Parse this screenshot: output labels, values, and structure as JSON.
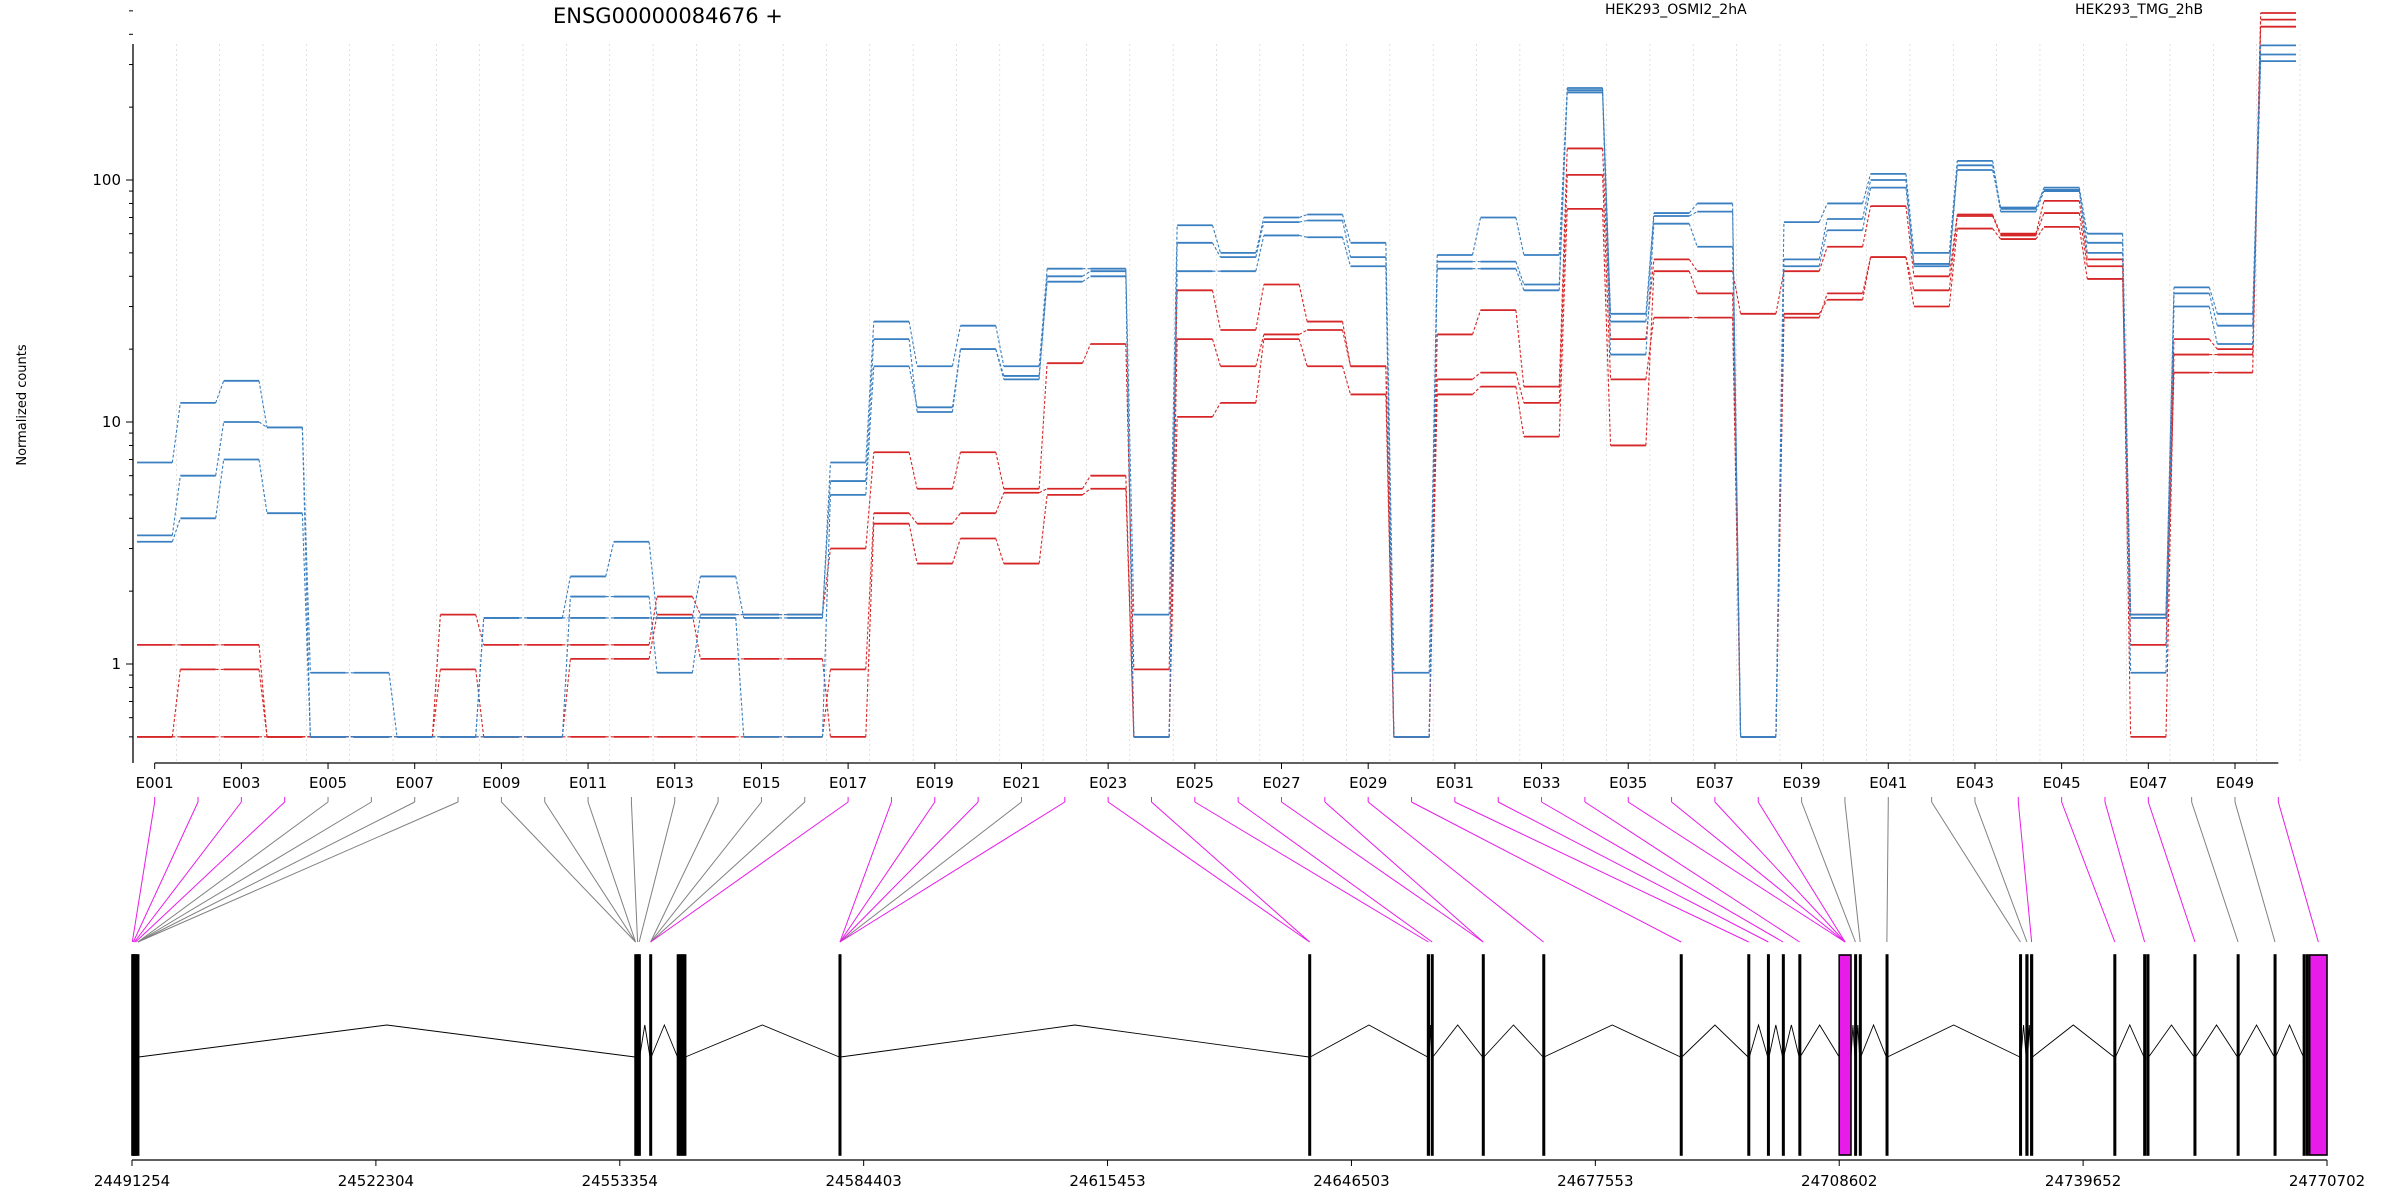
{
  "title": "ENSG00000084676 +",
  "ylabel": "Normalized counts",
  "legend": [
    {
      "name": "HEK293_OSMI2_2hA",
      "color": "#d62728"
    },
    {
      "name": "HEK293_TMG_2hB",
      "color": "#3a7fc0"
    }
  ],
  "chart_data": {
    "type": "line",
    "title": "ENSG00000084676 +",
    "ylabel": "Normalized counts",
    "yscale": "log",
    "ylim": [
      0.5,
      600
    ],
    "yticks": [
      1,
      10,
      100
    ],
    "ytick_labels": [
      "1",
      "10",
      "100"
    ],
    "xlabels_shown": [
      "E001",
      "E003",
      "E005",
      "E007",
      "E009",
      "E011",
      "E013",
      "E015",
      "E017",
      "E019",
      "E021",
      "E023",
      "E025",
      "E027",
      "E029",
      "E031",
      "E033",
      "E035",
      "E037",
      "E039",
      "E041",
      "E043",
      "E045",
      "E047",
      "E049"
    ],
    "categories": [
      "E001",
      "E002",
      "E003",
      "E004",
      "E005",
      "E006",
      "E007",
      "E008",
      "E009",
      "E010",
      "E011",
      "E012",
      "E013",
      "E014",
      "E015",
      "E016",
      "E017",
      "E018",
      "E019",
      "E020",
      "E021",
      "E022",
      "E023",
      "E024",
      "E025",
      "E026",
      "E027",
      "E028",
      "E029",
      "E030",
      "E031",
      "E032",
      "E033",
      "E034",
      "E035",
      "E036",
      "E037",
      "E038",
      "E039",
      "E040",
      "E041",
      "E042",
      "E043",
      "E044",
      "E045",
      "E046",
      "E047",
      "E048",
      "E049",
      "E050"
    ],
    "series": [
      {
        "name": "HEK293_OSMI2_2hA",
        "color": "#d62728",
        "values": [
          1.2,
          1.2,
          1.2,
          0.5,
          0.5,
          0.5,
          0.5,
          1.6,
          1.2,
          1.2,
          1.2,
          1.2,
          1.9,
          1.6,
          1.6,
          1.6,
          3.0,
          7.5,
          5.3,
          7.5,
          5.3,
          17.5,
          21.0,
          0.95,
          35.0,
          24.0,
          37.0,
          26.0,
          17.0,
          0.5,
          23.0,
          29.0,
          14.0,
          135.0,
          22.0,
          47.0,
          42.0,
          28.0,
          42.0,
          53.0,
          78.0,
          40.0,
          72.0,
          60.0,
          82.0,
          47.0,
          1.6,
          22.0,
          20.0,
          490.0
        ]
      },
      {
        "name": "HEK293_OSMI2_2hA",
        "color": "#d62728",
        "values": [
          0.5,
          0.95,
          0.95,
          0.5,
          0.5,
          0.5,
          0.5,
          0.95,
          0.5,
          0.5,
          0.5,
          0.5,
          0.5,
          0.5,
          0.5,
          0.5,
          0.95,
          4.2,
          3.8,
          4.2,
          5.1,
          5.3,
          6.0,
          0.5,
          22.0,
          17.0,
          23.0,
          24.0,
          17.0,
          0.5,
          15.0,
          16.0,
          12.0,
          105.0,
          15.0,
          27.0,
          27.0,
          0.5,
          27.0,
          34.0,
          48.0,
          30.0,
          63.0,
          57.0,
          64.0,
          39.0,
          1.2,
          16.0,
          16.0,
          430.0
        ]
      },
      {
        "name": "HEK293_OSMI2_2hA",
        "color": "#d62728",
        "values": [
          0.5,
          0.5,
          0.5,
          0.5,
          0.5,
          0.5,
          0.5,
          0.5,
          0.5,
          0.5,
          1.05,
          1.05,
          1.6,
          1.05,
          1.05,
          1.05,
          0.5,
          3.8,
          2.6,
          3.3,
          2.6,
          5.0,
          5.3,
          0.5,
          10.5,
          12.0,
          22.0,
          17.0,
          13.0,
          0.5,
          13.0,
          14.0,
          8.7,
          76.0,
          8.0,
          42.0,
          34.0,
          0.5,
          28.0,
          32.0,
          48.0,
          35.0,
          71.0,
          59.0,
          73.0,
          44.0,
          0.5,
          19.0,
          19.0,
          460.0
        ]
      },
      {
        "name": "HEK293_TMG_2hB",
        "color": "#3a7fc0",
        "values": [
          6.8,
          12.0,
          14.8,
          9.5,
          0.92,
          0.92,
          0.5,
          0.5,
          1.55,
          1.55,
          2.3,
          3.2,
          1.55,
          2.3,
          1.55,
          1.55,
          6.8,
          26.0,
          17.0,
          25.0,
          17.0,
          43.0,
          43.0,
          1.6,
          65.0,
          50.0,
          70.0,
          72.0,
          55.0,
          0.92,
          49.0,
          70.0,
          49.0,
          240.0,
          28.0,
          73.0,
          80.0,
          0.5,
          67.0,
          80.0,
          106.0,
          50.0,
          120.0,
          76.0,
          93.0,
          60.0,
          1.6,
          36.0,
          28.0,
          360.0
        ]
      },
      {
        "name": "HEK293_TMG_2hB",
        "color": "#3a7fc0",
        "values": [
          3.4,
          6.0,
          10.0,
          9.5,
          0.5,
          0.5,
          0.5,
          0.5,
          0.5,
          0.5,
          1.9,
          1.9,
          0.92,
          1.6,
          1.6,
          1.6,
          5.7,
          22.0,
          11.0,
          20.0,
          15.0,
          40.0,
          42.0,
          0.5,
          55.0,
          48.0,
          67.0,
          68.0,
          48.0,
          0.5,
          46.0,
          46.0,
          37.0,
          235.0,
          26.0,
          71.0,
          74.0,
          0.5,
          47.0,
          69.0,
          100.0,
          45.0,
          115.0,
          74.0,
          90.0,
          55.0,
          1.55,
          34.0,
          25.0,
          330.0
        ]
      },
      {
        "name": "HEK293_TMG_2hB",
        "color": "#3a7fc0",
        "values": [
          3.2,
          4.0,
          7.0,
          4.2,
          0.5,
          0.5,
          0.5,
          0.5,
          1.55,
          1.55,
          1.55,
          1.55,
          1.55,
          1.55,
          0.5,
          0.5,
          5.0,
          17.0,
          11.5,
          20.0,
          15.5,
          38.0,
          40.0,
          0.5,
          42.0,
          42.0,
          59.0,
          58.0,
          44.0,
          0.5,
          43.0,
          43.0,
          35.0,
          230.0,
          19.0,
          66.0,
          53.0,
          0.5,
          44.0,
          62.0,
          93.0,
          44.0,
          110.0,
          77.0,
          91.0,
          50.0,
          0.92,
          30.0,
          21.0,
          310.0
        ]
      }
    ]
  },
  "gene_model": {
    "coordinates": [
      "24491254",
      "24522304",
      "24553354",
      "24584403",
      "24615453",
      "24646503",
      "24677553",
      "24708602",
      "24739652",
      "24770702"
    ],
    "coord_min": 24491254,
    "coord_max": 24770702,
    "highlight_color": "#e81ce8",
    "line_color": "#808080",
    "exons": [
      [
        24491254,
        24491330
      ],
      [
        24491380,
        24491460
      ],
      [
        24491520,
        24491600
      ],
      [
        24491660,
        24491740
      ],
      [
        24491900,
        24492100
      ],
      [
        24555300,
        24555420
      ],
      [
        24555560,
        24555680
      ],
      [
        24555760,
        24555880
      ],
      [
        24557200,
        24557360
      ],
      [
        24560700,
        24560840
      ],
      [
        24561000,
        24561140
      ],
      [
        24561280,
        24561400
      ],
      [
        24561560,
        24561700
      ],
      [
        24581300,
        24581460
      ],
      [
        24641100,
        24641260
      ],
      [
        24656200,
        24656400
      ],
      [
        24656700,
        24656860
      ],
      [
        24663200,
        24663360
      ],
      [
        24670900,
        24671020
      ],
      [
        24688400,
        24688560
      ],
      [
        24697000,
        24697160
      ],
      [
        24699500,
        24699660
      ],
      [
        24701400,
        24701520
      ],
      [
        24703500,
        24703620
      ],
      [
        24708600,
        24710100
      ],
      [
        24710600,
        24710740
      ],
      [
        24711200,
        24711340
      ],
      [
        24714600,
        24714740
      ],
      [
        24731600,
        24731740
      ],
      [
        24732400,
        24732600
      ],
      [
        24733000,
        24733200
      ],
      [
        24743600,
        24743780
      ],
      [
        24747400,
        24747560
      ],
      [
        24747800,
        24748000
      ],
      [
        24753800,
        24753980
      ],
      [
        24759300,
        24759460
      ],
      [
        24764000,
        24764160
      ],
      [
        24767700,
        24767860
      ],
      [
        24768100,
        24768300
      ],
      [
        24768500,
        24770702
      ]
    ],
    "highlighted_exons": [
      [
        24708600,
        24710100
      ],
      [
        24768500,
        24770702
      ]
    ],
    "feature_map": [
      [
        24491254,
        24491330
      ],
      [
        24491380,
        24491460
      ],
      [
        24491520,
        24491600
      ],
      [
        24491660,
        24491740
      ],
      [
        24491900,
        24492100
      ],
      [
        24491900,
        24492100
      ],
      [
        24491900,
        24492100
      ],
      [
        24491900,
        24492100
      ],
      [
        24555300,
        24555420
      ],
      [
        24555300,
        24555420
      ],
      [
        24555300,
        24555420
      ],
      [
        24555560,
        24555680
      ],
      [
        24555760,
        24555880
      ],
      [
        24557200,
        24557360
      ],
      [
        24557200,
        24557360
      ],
      [
        24557200,
        24557360
      ],
      [
        24557200,
        24557360
      ],
      [
        24581300,
        24581460
      ],
      [
        24581300,
        24581460
      ],
      [
        24581300,
        24581460
      ],
      [
        24581300,
        24581460
      ],
      [
        24581300,
        24581460
      ],
      [
        24641100,
        24641260
      ],
      [
        24641100,
        24641260
      ],
      [
        24656200,
        24656400
      ],
      [
        24656700,
        24656860
      ],
      [
        24663200,
        24663360
      ],
      [
        24663200,
        24663360
      ],
      [
        24670900,
        24671020
      ],
      [
        24688400,
        24688560
      ],
      [
        24697000,
        24697160
      ],
      [
        24699500,
        24699660
      ],
      [
        24701400,
        24701520
      ],
      [
        24703500,
        24703620
      ],
      [
        24708600,
        24710100
      ],
      [
        24708600,
        24710100
      ],
      [
        24708600,
        24710100
      ],
      [
        24708600,
        24710100
      ],
      [
        24710600,
        24710740
      ],
      [
        24711200,
        24711340
      ],
      [
        24714600,
        24714740
      ],
      [
        24731600,
        24731740
      ],
      [
        24732400,
        24732600
      ],
      [
        24733000,
        24733200
      ],
      [
        24743600,
        24743780
      ],
      [
        24747400,
        24747560
      ],
      [
        24753800,
        24753980
      ],
      [
        24759300,
        24759460
      ],
      [
        24764000,
        24764160
      ],
      [
        24768500,
        24770702
      ]
    ],
    "highlighted_features": [
      "E001",
      "E002",
      "E003",
      "E004",
      "E017",
      "E018",
      "E019",
      "E020",
      "E022",
      "E023",
      "E024",
      "E025",
      "E026",
      "E027",
      "E028",
      "E029",
      "E030",
      "E031",
      "E032",
      "E033",
      "E034",
      "E035",
      "E036",
      "E037",
      "E038",
      "E044",
      "E045",
      "E046",
      "E047",
      "E050"
    ]
  }
}
